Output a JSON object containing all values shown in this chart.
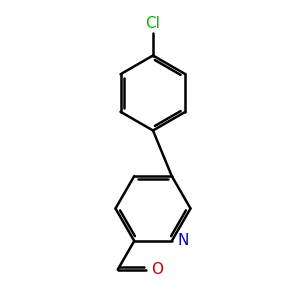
{
  "background_color": "#ffffff",
  "bond_color": "#000000",
  "cl_color": "#00bb00",
  "n_color": "#0000cc",
  "o_color": "#cc0000",
  "cl_label": "Cl",
  "n_label": "N",
  "o_label": "O",
  "line_width": 1.8,
  "figsize": [
    3.0,
    3.0
  ],
  "dpi": 100
}
